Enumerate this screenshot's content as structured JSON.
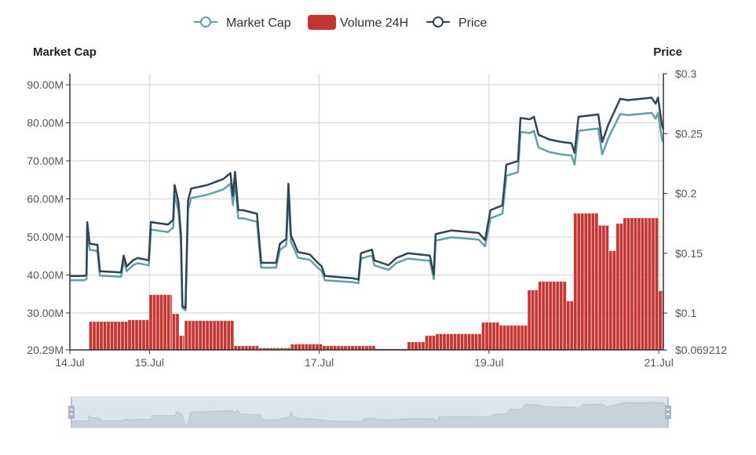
{
  "chart_data": {
    "type": "line+bar",
    "legend": {
      "position": "top-center",
      "items": [
        {
          "name": "Market Cap",
          "color": "#61a0a8",
          "icon": "line-circle"
        },
        {
          "name": "Volume 24H",
          "color": "#c23531",
          "icon": "rect"
        },
        {
          "name": "Price",
          "color": "#2f4554",
          "icon": "line-circle"
        }
      ]
    },
    "x_axis": {
      "unit": "hours since 14 Jul 00:00",
      "range": [
        1.5,
        169.3
      ],
      "ticks": [
        {
          "label": "14.Jul",
          "value": 1.5
        },
        {
          "label": "15.Jul",
          "value": 24
        },
        {
          "label": "17.Jul",
          "value": 72
        },
        {
          "label": "19.Jul",
          "value": 120
        },
        {
          "label": "21.Jul",
          "value": 168
        }
      ]
    },
    "y_left": {
      "name": "Market Cap",
      "range": [
        20.29,
        92.9
      ],
      "ticks": [
        {
          "label": "20.29M",
          "value": 20.29
        },
        {
          "label": "30.00M",
          "value": 30
        },
        {
          "label": "40.00M",
          "value": 40
        },
        {
          "label": "50.00M",
          "value": 50
        },
        {
          "label": "60.00M",
          "value": 60
        },
        {
          "label": "70.00M",
          "value": 70
        },
        {
          "label": "80.00M",
          "value": 80
        },
        {
          "label": "90.00M",
          "value": 90
        }
      ]
    },
    "y_right": {
      "name": "Price",
      "range": [
        0.069212,
        0.3
      ],
      "ticks": [
        {
          "label": "$0.069212",
          "value": 0.069212
        },
        {
          "label": "$0.1",
          "value": 0.1
        },
        {
          "label": "$0.15",
          "value": 0.15
        },
        {
          "label": "$0.2",
          "value": 0.2
        },
        {
          "label": "$0.25",
          "value": 0.25
        },
        {
          "label": "$0.3",
          "value": 0.3
        }
      ]
    },
    "volume_axis": {
      "visible": false,
      "range": [
        0,
        100
      ]
    },
    "hours": [
      1.5,
      5.6,
      6.2,
      6.4,
      7.1,
      9.3,
      10,
      16,
      16.7,
      17.6,
      19.3,
      20.7,
      23.8,
      24.4,
      29.3,
      30.7,
      31.1,
      32.2,
      32.9,
      33.3,
      34.2,
      34.9,
      35.8,
      40.4,
      44.9,
      46.9,
      47.6,
      48.2,
      49.1,
      50.4,
      54.4,
      55.6,
      59.8,
      60.9,
      62.7,
      63.3,
      64,
      66,
      69.3,
      71.6,
      72.7,
      73.6,
      81.6,
      83.1,
      83.8,
      86.9,
      87.6,
      91.6,
      93.8,
      97.1,
      103.3,
      104.4,
      104.9,
      109.3,
      117.1,
      118.9,
      120.4,
      123.8,
      124.9,
      128.2,
      128.9,
      131.6,
      132.7,
      134,
      137.1,
      140.4,
      143.3,
      144.2,
      145.3,
      150.9,
      152,
      153.8,
      157.1,
      159.3,
      166,
      167.1,
      167.8,
      168.9,
      169.3
    ],
    "price": [
      0.131,
      0.131,
      0.132,
      0.176,
      0.158,
      0.157,
      0.135,
      0.134,
      0.148,
      0.139,
      0.144,
      0.146,
      0.144,
      0.176,
      0.174,
      0.178,
      0.207,
      0.193,
      0.165,
      0.106,
      0.104,
      0.194,
      0.204,
      0.207,
      0.212,
      0.217,
      0.198,
      0.218,
      0.186,
      0.186,
      0.183,
      0.142,
      0.142,
      0.158,
      0.162,
      0.208,
      0.165,
      0.151,
      0.149,
      0.142,
      0.139,
      0.131,
      0.129,
      0.128,
      0.15,
      0.153,
      0.144,
      0.14,
      0.146,
      0.15,
      0.148,
      0.132,
      0.166,
      0.169,
      0.167,
      0.161,
      0.186,
      0.19,
      0.224,
      0.227,
      0.263,
      0.262,
      0.264,
      0.249,
      0.245,
      0.243,
      0.242,
      0.234,
      0.264,
      0.266,
      0.243,
      0.258,
      0.279,
      0.278,
      0.28,
      0.275,
      0.28,
      0.257,
      0.254
    ],
    "market_cap": [
      38.6,
      38.6,
      38.9,
      51.9,
      46.6,
      46.3,
      39.8,
      39.5,
      43.7,
      41.0,
      42.5,
      43.1,
      42.5,
      51.9,
      51.3,
      52.5,
      61.1,
      56.9,
      48.7,
      31.3,
      30.7,
      57.2,
      60.2,
      61.1,
      62.5,
      64.0,
      58.4,
      64.3,
      54.9,
      54.9,
      54.0,
      41.9,
      41.9,
      46.6,
      47.8,
      61.4,
      48.7,
      44.5,
      44.0,
      41.9,
      41.0,
      38.6,
      38.1,
      37.8,
      44.3,
      45.1,
      42.5,
      41.3,
      43.1,
      44.3,
      43.7,
      38.9,
      49.0,
      49.9,
      49.3,
      47.5,
      54.9,
      56.1,
      66.1,
      67.0,
      77.6,
      77.3,
      77.9,
      73.5,
      72.3,
      71.7,
      71.4,
      69.0,
      77.9,
      78.5,
      71.7,
      76.1,
      82.3,
      82.0,
      82.6,
      81.1,
      82.6,
      75.8,
      74.9
    ],
    "volume_steps": [
      [
        7,
        10.2
      ],
      [
        18,
        10.8
      ],
      [
        24,
        19.9
      ],
      [
        30.5,
        13
      ],
      [
        32.5,
        5.1
      ],
      [
        34,
        10.5
      ],
      [
        48,
        1.4
      ],
      [
        55,
        0.6
      ],
      [
        64,
        2
      ],
      [
        73,
        1.4
      ],
      [
        88,
        0.3
      ],
      [
        97,
        2.8
      ],
      [
        102,
        5.1
      ],
      [
        105,
        5.7
      ],
      [
        118,
        9.9
      ],
      [
        123,
        8.8
      ],
      [
        131,
        21.6
      ],
      [
        134,
        24.7
      ],
      [
        142,
        17.6
      ],
      [
        144,
        49.4
      ],
      [
        151,
        45
      ],
      [
        154,
        35.8
      ],
      [
        156,
        45.7
      ],
      [
        158,
        47.7
      ],
      [
        168,
        21.3
      ]
    ],
    "volume_end_hour": 169.3,
    "data_zoom": {
      "start_percent": 0,
      "end_percent": 100
    }
  }
}
